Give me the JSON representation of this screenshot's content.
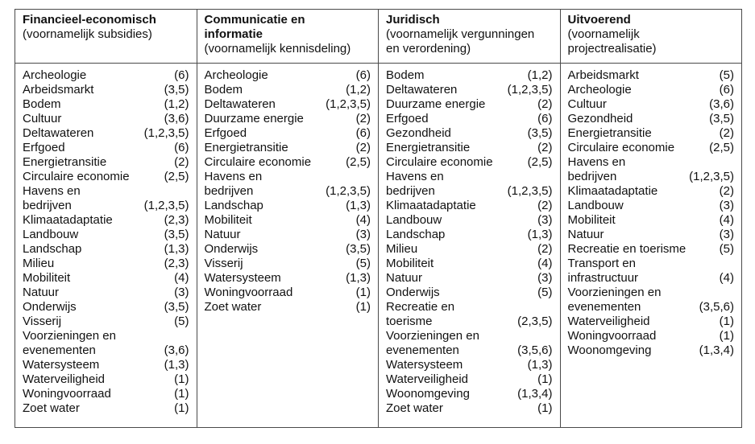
{
  "table": {
    "columns": [
      {
        "title": "Financieel-economisch",
        "subtitle": "(voornamelijk subsidies)",
        "items": [
          {
            "label": "Archeologie",
            "value": "(6)"
          },
          {
            "label": "Arbeidsmarkt",
            "value": "(3,5)"
          },
          {
            "label": "Bodem",
            "value": "(1,2)"
          },
          {
            "label": "Cultuur",
            "value": "(3,6)"
          },
          {
            "label": "Deltawateren",
            "value": "(1,2,3,5)"
          },
          {
            "label": "Erfgoed",
            "value": "(6)"
          },
          {
            "label": "Energietransitie",
            "value": "(2)"
          },
          {
            "label": "Circulaire economie",
            "value": "(2,5)"
          },
          {
            "label": "Havens en\nbedrijven",
            "value": "(1,2,3,5)"
          },
          {
            "label": "Klimaatadaptatie",
            "value": "(2,3)"
          },
          {
            "label": "Landbouw",
            "value": "(3,5)"
          },
          {
            "label": "Landschap",
            "value": "(1,3)"
          },
          {
            "label": "Milieu",
            "value": "(2,3)"
          },
          {
            "label": "Mobiliteit",
            "value": "(4)"
          },
          {
            "label": "Natuur",
            "value": "(3)"
          },
          {
            "label": "Onderwijs",
            "value": "(3,5)"
          },
          {
            "label": "Visserij",
            "value": "(5)"
          },
          {
            "label": "Voorzieningen en\nevenementen",
            "value": "(3,6)"
          },
          {
            "label": "Watersysteem",
            "value": "(1,3)"
          },
          {
            "label": "Waterveiligheid",
            "value": "(1)"
          },
          {
            "label": "Woningvoorraad",
            "value": "(1)"
          },
          {
            "label": "Zoet water",
            "value": "(1)"
          }
        ]
      },
      {
        "title": "Communicatie en\ninformatie",
        "subtitle": "(voornamelijk kennisdeling)",
        "items": [
          {
            "label": "Archeologie",
            "value": "(6)"
          },
          {
            "label": "Bodem",
            "value": "(1,2)"
          },
          {
            "label": "Deltawateren",
            "value": "(1,2,3,5)"
          },
          {
            "label": "Duurzame energie",
            "value": "(2)"
          },
          {
            "label": "Erfgoed",
            "value": "(6)"
          },
          {
            "label": "Energietransitie",
            "value": "(2)"
          },
          {
            "label": "Circulaire economie",
            "value": "(2,5)"
          },
          {
            "label": "Havens en\nbedrijven",
            "value": "(1,2,3,5)"
          },
          {
            "label": "Landschap",
            "value": "(1,3)"
          },
          {
            "label": "Mobiliteit",
            "value": "(4)"
          },
          {
            "label": "Natuur",
            "value": "(3)"
          },
          {
            "label": "Onderwijs",
            "value": "(3,5)"
          },
          {
            "label": "Visserij",
            "value": "(5)"
          },
          {
            "label": "Watersysteem",
            "value": "(1,3)"
          },
          {
            "label": "Woningvoorraad",
            "value": "(1)"
          },
          {
            "label": "Zoet water",
            "value": "(1)"
          }
        ]
      },
      {
        "title": "Juridisch",
        "subtitle": "(voornamelijk vergunningen\nen verordening)",
        "items": [
          {
            "label": "Bodem",
            "value": "(1,2)"
          },
          {
            "label": "Deltawateren",
            "value": "(1,2,3,5)"
          },
          {
            "label": "Duurzame energie",
            "value": "(2)"
          },
          {
            "label": "Erfgoed",
            "value": "(6)"
          },
          {
            "label": "Gezondheid",
            "value": "(3,5)"
          },
          {
            "label": "Energietransitie",
            "value": "(2)"
          },
          {
            "label": "Circulaire economie",
            "value": "(2,5)"
          },
          {
            "label": "Havens en\nbedrijven",
            "value": "(1,2,3,5)"
          },
          {
            "label": "Klimaatadaptatie",
            "value": "(2)"
          },
          {
            "label": "Landbouw",
            "value": "(3)"
          },
          {
            "label": "Landschap",
            "value": "(1,3)"
          },
          {
            "label": "Milieu",
            "value": "(2)"
          },
          {
            "label": "Mobiliteit",
            "value": "(4)"
          },
          {
            "label": "Natuur",
            "value": "(3)"
          },
          {
            "label": "Onderwijs",
            "value": "(5)"
          },
          {
            "label": "Recreatie en\ntoerisme",
            "value": "(2,3,5)"
          },
          {
            "label": "Voorzieningen en\nevenementen",
            "value": "(3,5,6)"
          },
          {
            "label": "Watersysteem",
            "value": "(1,3)"
          },
          {
            "label": "Waterveiligheid",
            "value": "(1)"
          },
          {
            "label": "Woonomgeving",
            "value": "(1,3,4)"
          },
          {
            "label": "Zoet water",
            "value": "(1)"
          }
        ]
      },
      {
        "title": "Uitvoerend",
        "subtitle": "(voornamelijk\nprojectrealisatie)",
        "items": [
          {
            "label": "Arbeidsmarkt",
            "value": "(5)"
          },
          {
            "label": "Archeologie",
            "value": "(6)"
          },
          {
            "label": "Cultuur",
            "value": "(3,6)"
          },
          {
            "label": "Gezondheid",
            "value": "(3,5)"
          },
          {
            "label": "Energietransitie",
            "value": "(2)"
          },
          {
            "label": "Circulaire economie",
            "value": "(2,5)"
          },
          {
            "label": "Havens en\nbedrijven",
            "value": "(1,2,3,5)"
          },
          {
            "label": "Klimaatadaptatie",
            "value": "(2)"
          },
          {
            "label": "Landbouw",
            "value": "(3)"
          },
          {
            "label": "Mobiliteit",
            "value": "(4)"
          },
          {
            "label": "Natuur",
            "value": "(3)"
          },
          {
            "label": "Recreatie en toerisme",
            "value": "(5)"
          },
          {
            "label": "Transport en\ninfrastructuur",
            "value": "(4)"
          },
          {
            "label": "Voorzieningen en\nevenementen",
            "value": "(3,5,6)"
          },
          {
            "label": "Waterveiligheid",
            "value": "(1)"
          },
          {
            "label": "Woningvoorraad",
            "value": "(1)"
          },
          {
            "label": "Woonomgeving",
            "value": "(1,3,4)"
          }
        ]
      }
    ]
  }
}
